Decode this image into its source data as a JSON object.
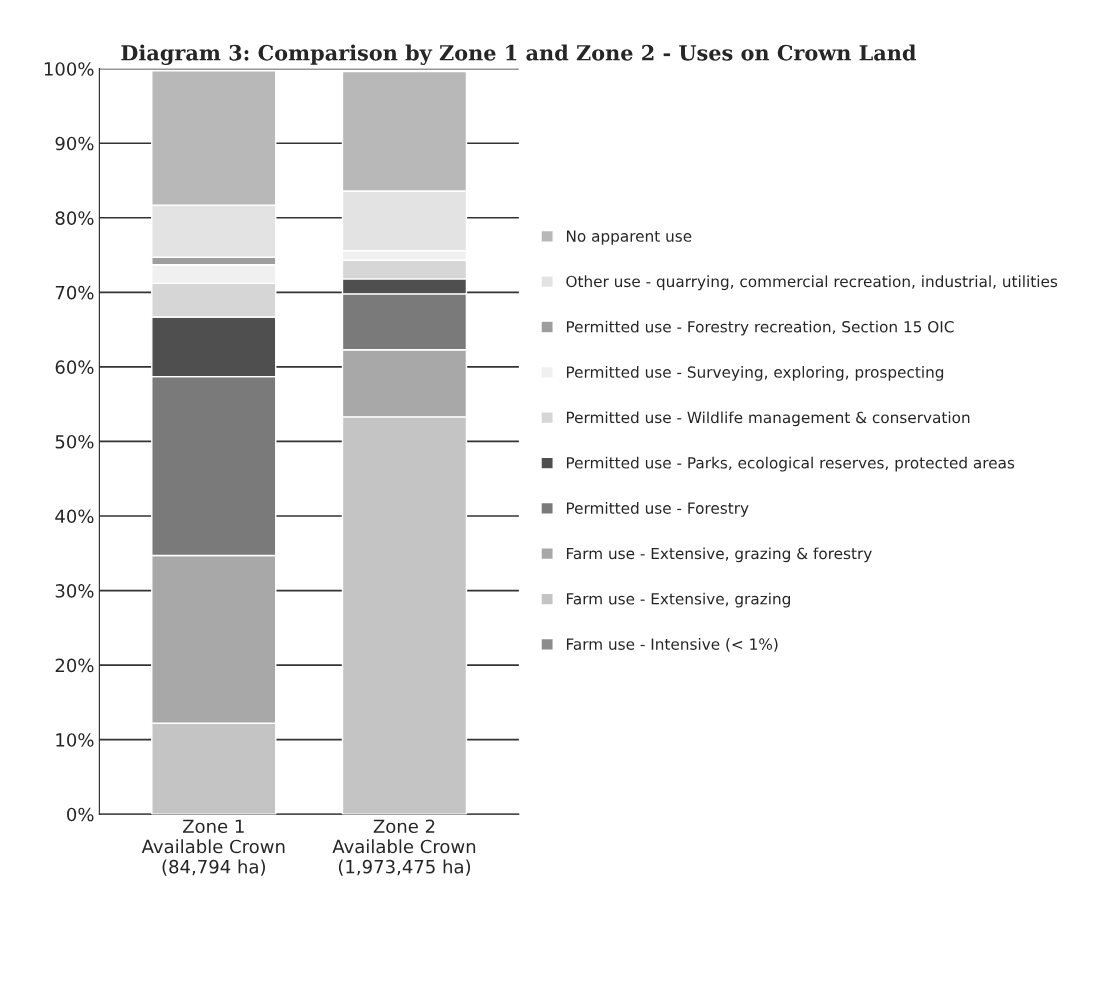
{
  "chart_data": {
    "type": "bar",
    "stacked": true,
    "title": "Diagram 3: Comparison by Zone 1 and Zone 2 - Uses on Crown Land",
    "categories": [
      "Zone 1\nAvailable Crown\n(84,794 ha)",
      "Zone 2\nAvailable Crown\n(1,973,475 ha)"
    ],
    "series": [
      {
        "name": "Farm use - Intensive (< 1%)",
        "color": "#8c8c8c",
        "values": [
          null,
          null
        ]
      },
      {
        "name": "Farm use - Extensive, grazing",
        "color": "#c4c4c4",
        "values": [
          12.2,
          53.3
        ]
      },
      {
        "name": "Farm use - Extensive, grazing & forestry",
        "color": "#a8a8a8",
        "values": [
          22.5,
          9
        ]
      },
      {
        "name": "Permitted use - Forestry",
        "color": "#7a7a7a",
        "values": [
          24,
          7.5
        ]
      },
      {
        "name": "Permitted use - Parks, ecological reserves, protected areas",
        "color": "#4f4f4f",
        "values": [
          8,
          2
        ]
      },
      {
        "name": "Permitted use - Wildlife management & conservation",
        "color": "#d6d6d6",
        "values": [
          4.5,
          2.5
        ]
      },
      {
        "name": "Permitted use - Surveying, exploring, prospecting",
        "color": "#f0f0f0",
        "values": [
          2.5,
          1.3
        ]
      },
      {
        "name": "Permitted use - Forestry recreation, Section 15 OIC",
        "color": "#9e9e9e",
        "values": [
          1,
          null
        ]
      },
      {
        "name": "Other use - quarrying, commercial recreation, industrial, utilities",
        "color": "#e3e3e3",
        "values": [
          7,
          8
        ]
      },
      {
        "name": "No apparent use",
        "color": "#b8b8b8",
        "values": [
          18,
          16
        ]
      }
    ],
    "ylim": [
      0,
      100
    ],
    "yticks": [
      {
        "value": 0,
        "label": "0%"
      },
      {
        "value": 10,
        "label": "10%"
      },
      {
        "value": 20,
        "label": "20%"
      },
      {
        "value": 30,
        "label": "30%"
      },
      {
        "value": 40,
        "label": "40%"
      },
      {
        "value": 50,
        "label": "50%"
      },
      {
        "value": 60,
        "label": "60%"
      },
      {
        "value": 70,
        "label": "70%"
      },
      {
        "value": 80,
        "label": "80%"
      },
      {
        "value": 90,
        "label": "90%"
      },
      {
        "value": 100,
        "label": "100%"
      }
    ],
    "grid": "y",
    "legend": "right"
  }
}
